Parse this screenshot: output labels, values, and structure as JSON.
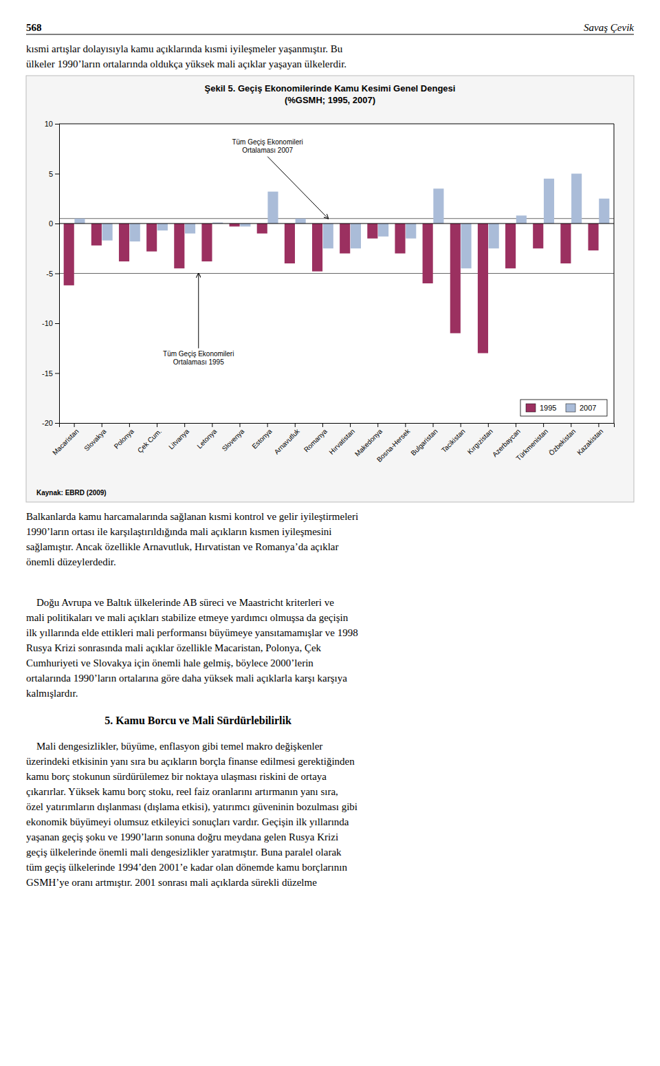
{
  "page_number": "568",
  "author": "Savaş Çevik",
  "top_text": "kısmi artışlar dolayısıyla kamu açıklarında kısmi iyileşmeler yaşanmıştır. Bu\nülkeler 1990’ların ortalarında oldukça yüksek mali açıklar yaşayan ülkelerdir.",
  "below_chart_text1": "Balkanlarda kamu harcamalarında sağlanan kısmi kontrol ve gelir iyileştirmeleri\n1990’ların ortası ile karşılaştırıldığında mali açıkların kısmen iyileşmesini\nsağlamıştır. Ancak özellikle Arnavutluk, Hırvatistan ve Romanya’da açıklar\nönemli düzeylerdedir.",
  "below_chart_text2": "    Doğu Avrupa ve Baltık ülkelerinde AB süreci ve Maastricht kriterleri ve\nmali politikaları ve mali açıkları stabilize etmeye yardımcı olmuşsa da geçişin\nilk yıllarında elde ettikleri mali performansı büyümeye yansıtamamışlar ve 1998\nRusya Krizi sonrasında mali açıklar özellikle Macaristan, Polonya, Çek\nCumhuriyeti ve Slovakya için önemli hale gelmiş, böylece 2000’lerin\nortalarında 1990’ların ortalarına göre daha yüksek mali açıklarla karşı karşıya\nkalmışlardır.",
  "section_heading": "5. Kamu Borcu ve Mali Sürdürlebilirlik",
  "section_text": "    Mali dengesizlikler, büyüme, enflasyon gibi temel makro değişkenler\nüzerindeki etkisinin yanı sıra bu açıkların borçla finanse edilmesi gerektiğinden\nkamu borç stokunun sürdürülemez bir noktaya ulaşması riskini de ortaya\nçıkarırlar. Yüksek kamu borç stoku, reel faiz oranlarını artırmanın yanı sıra,\nözel yatırımların dışlanması (dışlama etkisi), yatırımcı güveninin bozulması gibi\nekonomik büyümeyi olumsuz etkileyici sonuçları vardır. Geçişin ilk yıllarında\nyaşanan geçiş şoku ve 1990’ların sonuna doğru meydana gelen Rusya Krizi\ngeçiş ülkelerinde önemli mali dengesizlikler yaratmıştır. Buna paralel olarak\ntüm geçiş ülkelerinde 1994’den 2001’e kadar olan dönemde kamu borçlarının\nGSMH’ye oranı artmıştır. 2001 sonrası mali açıklarda sürekli düzelme",
  "chart_data": {
    "type": "bar",
    "title": "Şekil 5. Geçiş Ekonomilerinde Kamu Kesimi Genel Dengesi",
    "subtitle": "(%GSMH; 1995, 2007)",
    "source": "Kaynak: EBRD (2009)",
    "categories": [
      "Macaristan",
      "Slovakya",
      "Polonya",
      "Çek Cum.",
      "Litvanya",
      "Letonya",
      "Slovenya",
      "Estonya",
      "Arnavutluk",
      "Romanya",
      "Hırvatistan",
      "Makedonya",
      "Bosna-Hersek",
      "Bulgaristan",
      "Tacikistan",
      "Kırgızistan",
      "Azerbaycan",
      "Türkmenistan",
      "Özbekistan",
      "Kazakistan"
    ],
    "series": [
      {
        "name": "1995",
        "color": "#9b3060",
        "values": [
          -6.2,
          -2.2,
          -3.8,
          -2.8,
          -4.5,
          -3.8,
          -0.3,
          -1.0,
          -4.0,
          -4.8,
          -3.0,
          -1.5,
          -3.0,
          -6.0,
          -11.0,
          -13.0,
          -4.5,
          -2.5,
          -4.0,
          -2.7
        ]
      },
      {
        "name": "2007",
        "color": "#aabcd8",
        "values": [
          0.5,
          -1.7,
          -1.8,
          -0.7,
          -1.0,
          0.1,
          -0.3,
          3.2,
          0.5,
          -2.5,
          -2.5,
          -1.3,
          -1.5,
          3.5,
          -4.5,
          -2.5,
          0.8,
          4.5,
          5.0,
          2.5
        ]
      }
    ],
    "ylim": [
      -20,
      10
    ],
    "yticks": [
      -20,
      -15,
      -10,
      -5,
      0,
      5,
      10
    ],
    "grid": false,
    "legend": "lower right",
    "annotations": [
      {
        "text": "Tüm Geçiş Ekonomileri\nOrtalaması 2007",
        "value": 0.5
      },
      {
        "text": "Tüm Geçiş Ekonomileri\nOrtalaması 1995",
        "value": -5.0
      }
    ]
  }
}
